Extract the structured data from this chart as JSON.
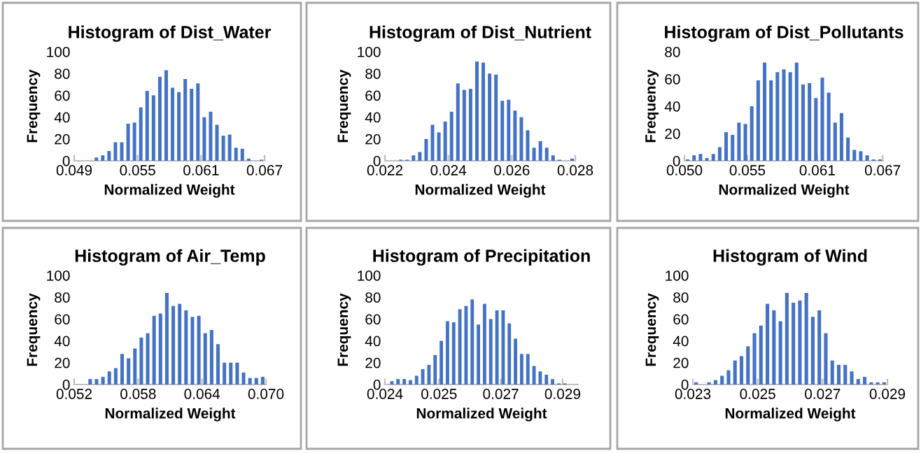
{
  "chart_data": [
    {
      "type": "histogram",
      "title": "Histogram of Dist_Water",
      "xlabel": "Normalized Weight",
      "ylabel": "Frequency",
      "color": "#4472c4",
      "bins": [
        0.049,
        0.0496,
        0.0502,
        0.0508,
        0.0514,
        0.052,
        0.0526,
        0.0532,
        0.0538,
        0.0544,
        0.055,
        0.0556,
        0.0562,
        0.0568,
        0.0574,
        0.058,
        0.0586,
        0.0592,
        0.0598,
        0.0604,
        0.061,
        0.0616,
        0.0622,
        0.0628,
        0.0634,
        0.064,
        0.0646,
        0.0652,
        0.0658,
        0.0664,
        0.067
      ],
      "values": [
        0,
        0,
        0,
        3,
        5,
        9,
        17,
        17,
        34,
        35,
        49,
        64,
        60,
        77,
        83,
        67,
        63,
        75,
        66,
        71,
        40,
        45,
        33,
        23,
        24,
        12,
        11,
        2,
        0,
        1
      ],
      "xlim": [
        0.049,
        0.067
      ],
      "xticks": [
        {
          "value": 0.049,
          "label": "0.049"
        },
        {
          "value": 0.055,
          "label": "0.055"
        },
        {
          "value": 0.061,
          "label": "0.061"
        },
        {
          "value": 0.067,
          "label": "0.067"
        }
      ],
      "ylim": [
        0,
        100
      ],
      "yticks": [
        0,
        20,
        40,
        60,
        80,
        100
      ],
      "grid": false,
      "legend": false
    },
    {
      "type": "histogram",
      "title": "Histogram of Dist_Nutrient",
      "xlabel": "Normalized Weight",
      "ylabel": "Frequency",
      "color": "#4472c4",
      "bins": [
        0.022,
        0.0222,
        0.0224,
        0.0226,
        0.0228,
        0.023,
        0.0232,
        0.0234,
        0.0236,
        0.0238,
        0.024,
        0.0242,
        0.0244,
        0.0246,
        0.0248,
        0.025,
        0.0252,
        0.0254,
        0.0256,
        0.0258,
        0.026,
        0.0262,
        0.0264,
        0.0266,
        0.0268,
        0.027,
        0.0272,
        0.0274,
        0.0276,
        0.0278,
        0.028
      ],
      "values": [
        0,
        0,
        1,
        1,
        5,
        8,
        20,
        33,
        26,
        36,
        45,
        71,
        65,
        66,
        91,
        90,
        80,
        79,
        55,
        56,
        46,
        40,
        28,
        12,
        18,
        12,
        5,
        1,
        0,
        2
      ],
      "xlim": [
        0.022,
        0.028
      ],
      "xticks": [
        {
          "value": 0.022,
          "label": "0.022"
        },
        {
          "value": 0.024,
          "label": "0.024"
        },
        {
          "value": 0.026,
          "label": "0.026"
        },
        {
          "value": 0.028,
          "label": "0.028"
        }
      ],
      "ylim": [
        0,
        100
      ],
      "yticks": [
        0,
        20,
        40,
        60,
        80,
        100
      ],
      "grid": false,
      "legend": false
    },
    {
      "type": "histogram",
      "title": "Histogram of Dist_Pollutants",
      "xlabel": "Normalized Weight",
      "ylabel": "Frequency",
      "color": "#4472c4",
      "bins": [
        0.05,
        0.05055,
        0.0511,
        0.05165,
        0.0522,
        0.05275,
        0.0533,
        0.05385,
        0.0544,
        0.05495,
        0.0555,
        0.05605,
        0.0566,
        0.05715,
        0.0577,
        0.05825,
        0.0588,
        0.05935,
        0.0599,
        0.06045,
        0.061,
        0.06155,
        0.0621,
        0.06265,
        0.0632,
        0.06375,
        0.0643,
        0.06485,
        0.0654,
        0.06595,
        0.0665,
        0.06705
      ],
      "values": [
        1,
        4,
        5,
        2,
        5,
        10,
        21,
        19,
        28,
        27,
        40,
        59,
        72,
        59,
        65,
        67,
        65,
        72,
        56,
        57,
        46,
        61,
        50,
        28,
        35,
        17,
        8,
        7,
        4,
        1,
        1
      ],
      "xlim": [
        0.05,
        0.06705
      ],
      "xticks": [
        {
          "value": 0.05,
          "label": "0.050"
        },
        {
          "value": 0.0554,
          "label": "0.055"
        },
        {
          "value": 0.0614,
          "label": "0.061"
        },
        {
          "value": 0.067,
          "label": "0.067"
        }
      ],
      "ylim": [
        0,
        80
      ],
      "yticks": [
        0,
        20,
        40,
        60,
        80
      ],
      "grid": false,
      "legend": false
    },
    {
      "type": "histogram",
      "title": "Histogram of Air_Temp",
      "xlabel": "Normalized Weight",
      "ylabel": "Frequency",
      "color": "#4472c4",
      "bins": [
        0.052,
        0.0526,
        0.0532,
        0.0538,
        0.0544,
        0.055,
        0.0556,
        0.0562,
        0.0568,
        0.0574,
        0.058,
        0.0586,
        0.0592,
        0.0598,
        0.0604,
        0.061,
        0.0616,
        0.0622,
        0.0628,
        0.0634,
        0.064,
        0.0646,
        0.0652,
        0.0658,
        0.0664,
        0.067,
        0.0676,
        0.0682,
        0.0688,
        0.0694,
        0.07
      ],
      "values": [
        0,
        0,
        5,
        5,
        7,
        12,
        15,
        28,
        24,
        33,
        43,
        47,
        63,
        65,
        84,
        72,
        74,
        68,
        62,
        63,
        47,
        50,
        37,
        20,
        20,
        20,
        11,
        6,
        6,
        7
      ],
      "xlim": [
        0.052,
        0.07
      ],
      "xticks": [
        {
          "value": 0.052,
          "label": "0.052"
        },
        {
          "value": 0.058,
          "label": "0.058"
        },
        {
          "value": 0.064,
          "label": "0.064"
        },
        {
          "value": 0.07,
          "label": "0.070"
        }
      ],
      "ylim": [
        0,
        100
      ],
      "yticks": [
        0,
        20,
        40,
        60,
        80,
        100
      ],
      "grid": false,
      "legend": false
    },
    {
      "type": "histogram",
      "title": "Histogram of Precipitation",
      "xlabel": "Normalized Weight",
      "ylabel": "Frequency",
      "color": "#4472c4",
      "bins": [
        0.0241,
        0.02426,
        0.02442,
        0.02458,
        0.02474,
        0.0249,
        0.02506,
        0.02522,
        0.02538,
        0.02554,
        0.0257,
        0.02586,
        0.02602,
        0.02618,
        0.02634,
        0.0265,
        0.02666,
        0.02682,
        0.02698,
        0.02714,
        0.0273,
        0.02746,
        0.02762,
        0.02778,
        0.02794,
        0.0281,
        0.02826,
        0.02842,
        0.02858,
        0.02874,
        0.0289
      ],
      "values": [
        3,
        5,
        5,
        4,
        8,
        14,
        18,
        27,
        40,
        58,
        57,
        69,
        72,
        78,
        55,
        74,
        60,
        68,
        68,
        56,
        42,
        28,
        28,
        17,
        12,
        9,
        5,
        1,
        1,
        0
      ],
      "xlim": [
        0.024,
        0.029
      ],
      "xticks": [
        {
          "value": 0.024,
          "label": "0.024"
        },
        {
          "value": 0.0254,
          "label": "0.025"
        },
        {
          "value": 0.027,
          "label": "0.027"
        },
        {
          "value": 0.0286,
          "label": "0.029"
        }
      ],
      "ylim": [
        0,
        100
      ],
      "yticks": [
        0,
        20,
        40,
        60,
        80,
        100
      ],
      "grid": false,
      "legend": false
    },
    {
      "type": "histogram",
      "title": "Histogram of Wind",
      "xlabel": "Normalized Weight",
      "ylabel": "Frequency",
      "color": "#4472c4",
      "bins": [
        0.023,
        0.0232,
        0.0234,
        0.0236,
        0.0238,
        0.024,
        0.0242,
        0.0244,
        0.0246,
        0.0248,
        0.025,
        0.0252,
        0.0254,
        0.0256,
        0.0258,
        0.026,
        0.0262,
        0.0264,
        0.0266,
        0.0268,
        0.027,
        0.0272,
        0.0274,
        0.0276,
        0.0278,
        0.028,
        0.0282,
        0.0284,
        0.0286,
        0.0288,
        0.029
      ],
      "values": [
        2,
        0,
        2,
        4,
        8,
        13,
        22,
        26,
        35,
        47,
        54,
        74,
        68,
        58,
        84,
        75,
        77,
        84,
        62,
        68,
        47,
        22,
        18,
        18,
        12,
        5,
        7,
        2,
        2,
        2
      ],
      "xlim": [
        0.023,
        0.029
      ],
      "xticks": [
        {
          "value": 0.023,
          "label": "0.023"
        },
        {
          "value": 0.025,
          "label": "0.025"
        },
        {
          "value": 0.027,
          "label": "0.027"
        },
        {
          "value": 0.029,
          "label": "0.029"
        }
      ],
      "ylim": [
        0,
        100
      ],
      "yticks": [
        0,
        20,
        40,
        60,
        80,
        100
      ],
      "grid": false,
      "legend": false
    }
  ]
}
